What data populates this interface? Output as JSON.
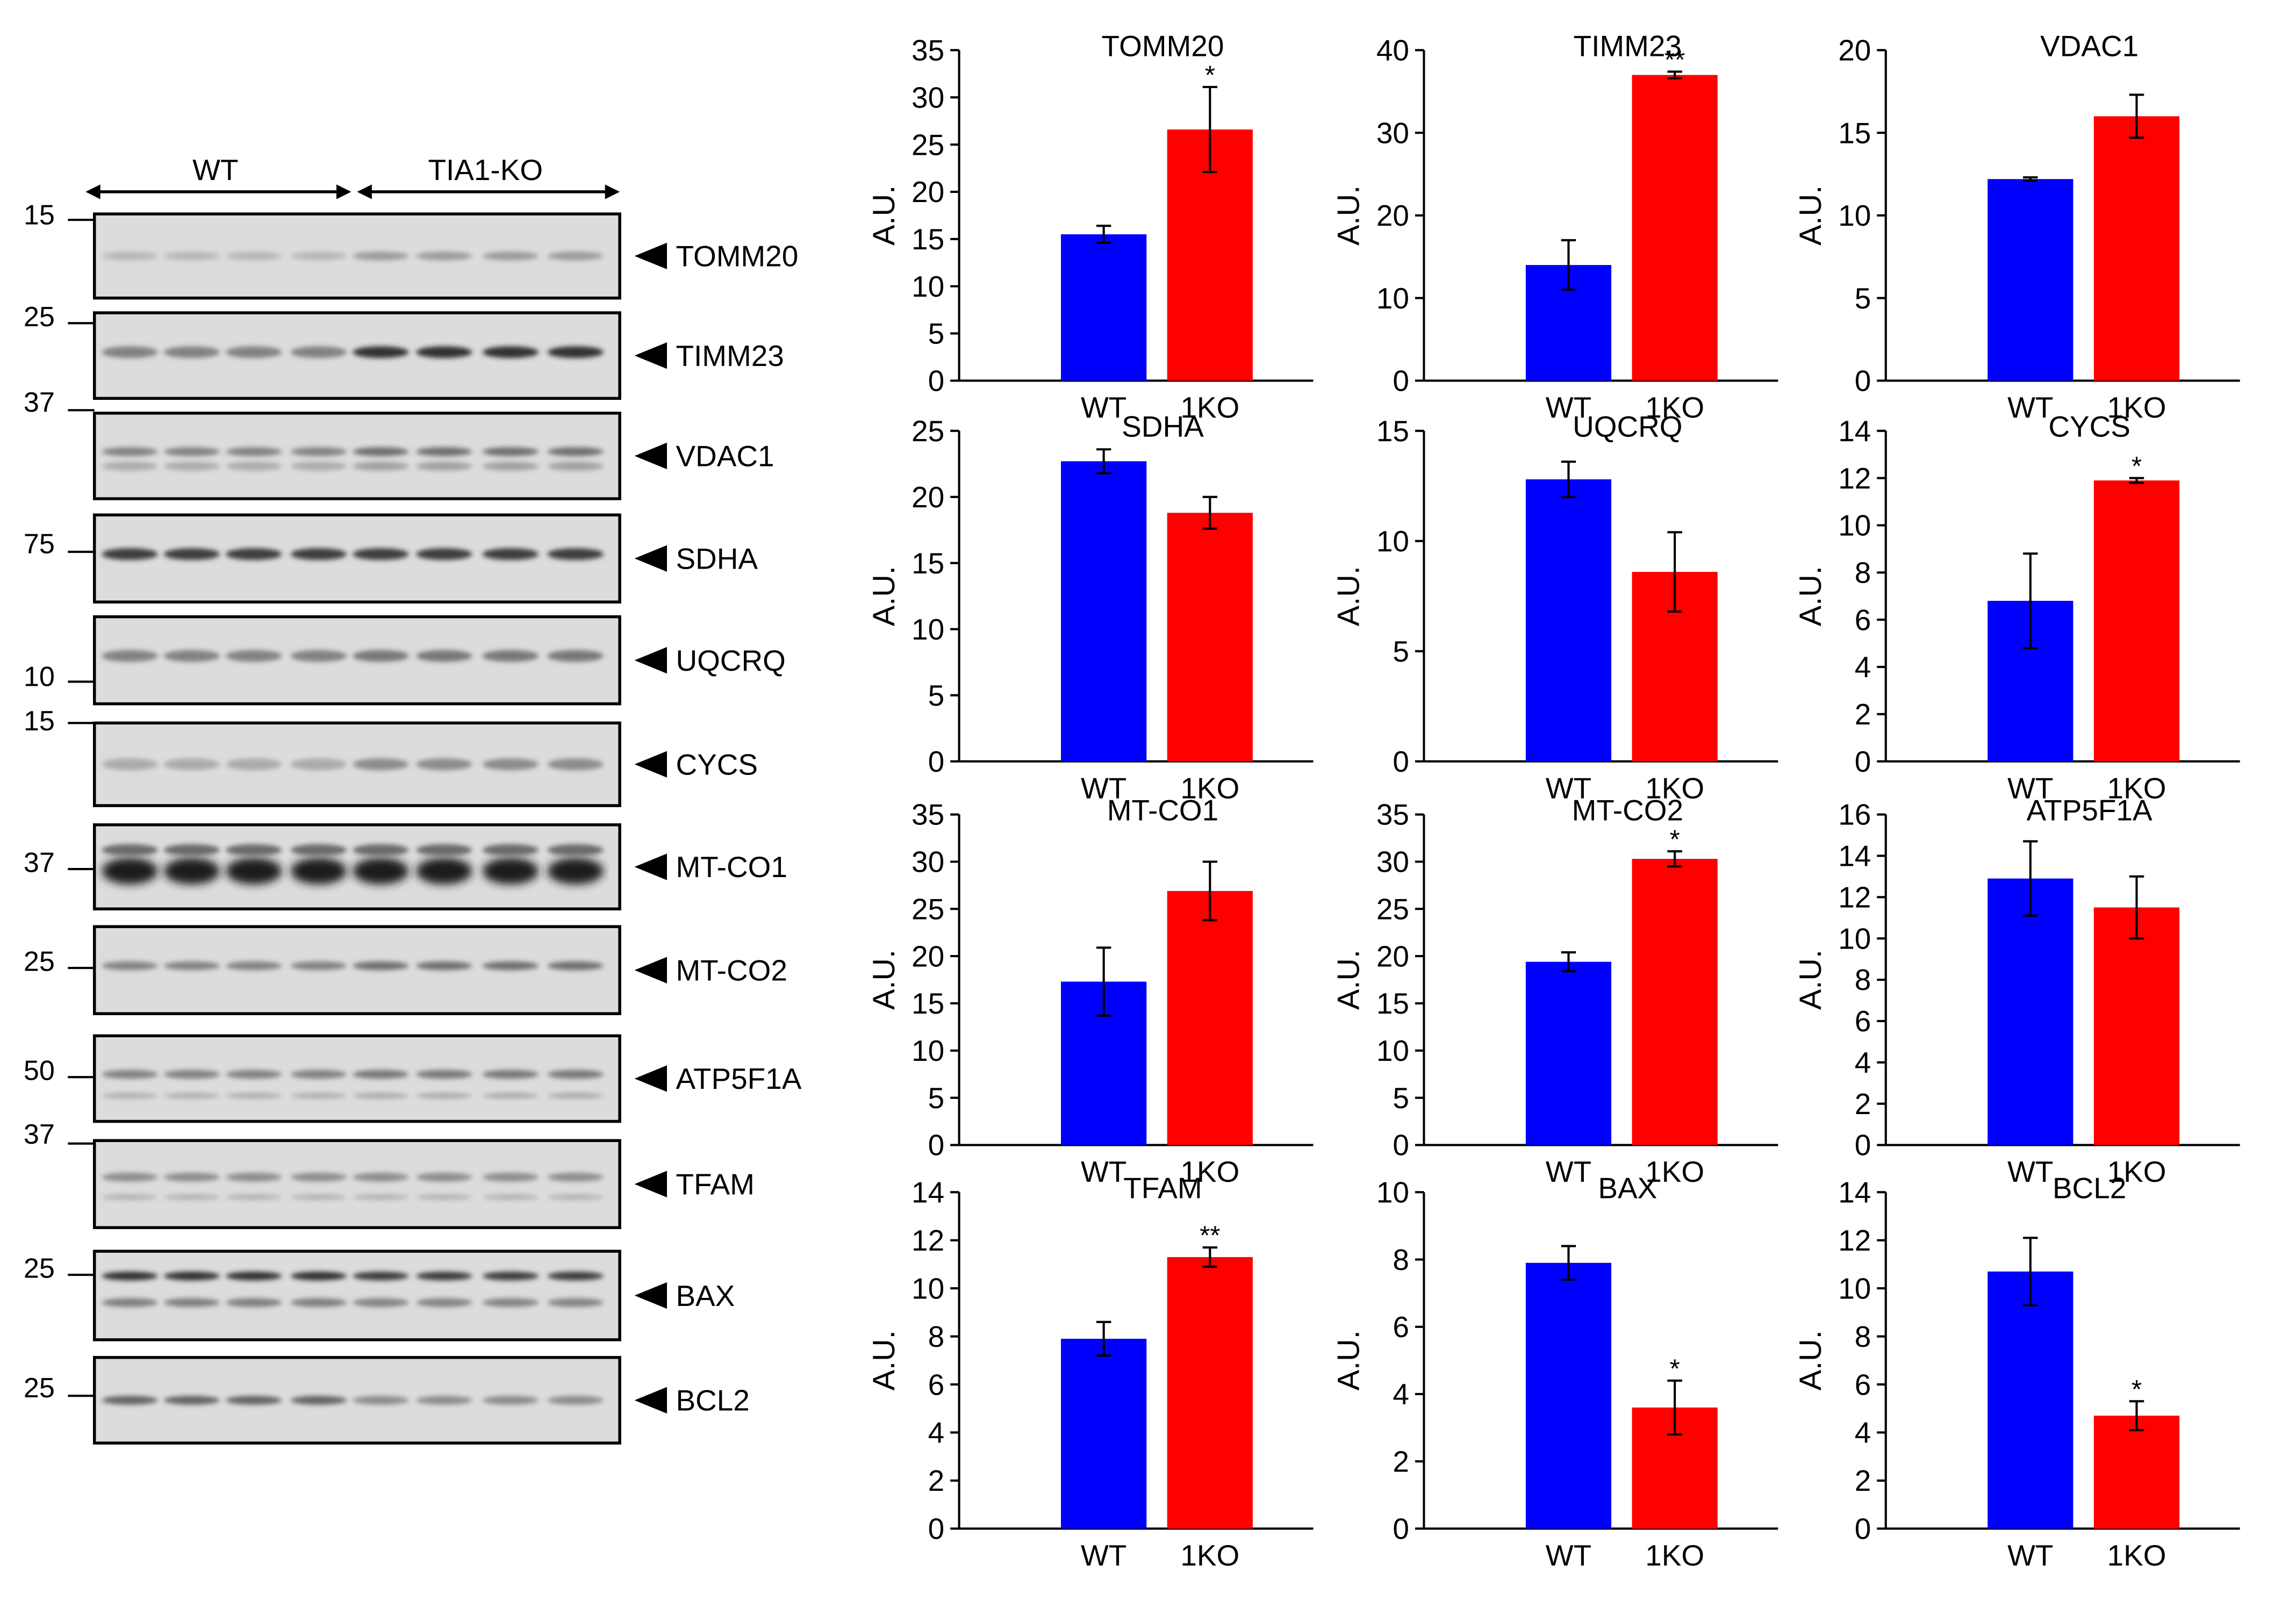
{
  "blot": {
    "groups": [
      "WT",
      "TIA1-KO"
    ],
    "markers": [
      "15",
      "25",
      "37",
      "75",
      "10",
      "15",
      "37",
      "25",
      "50",
      "37",
      "25",
      "25"
    ],
    "proteins": [
      "TOMM20",
      "TIMM23",
      "VDAC1",
      "SDHA",
      "UQCRQ",
      "CYCS",
      "MT-CO1",
      "MT-CO2",
      "ATP5F1A",
      "TFAM",
      "BAX",
      "BCL2"
    ]
  },
  "colors": {
    "wt": "#0000ff",
    "ko": "#ff0000",
    "axis": "#000000"
  },
  "chart_data": [
    {
      "type": "bar",
      "title": "TOMM20",
      "ylabel": "A.U.",
      "categories": [
        "WT",
        "1KO"
      ],
      "values": [
        15.5,
        26.6
      ],
      "errors": [
        0.9,
        4.5
      ],
      "ylim": [
        0,
        35
      ],
      "yticks": [
        0,
        5,
        10,
        15,
        20,
        25,
        30,
        35
      ],
      "significance": [
        "",
        "*"
      ]
    },
    {
      "type": "bar",
      "title": "TIMM23",
      "ylabel": "A.U.",
      "categories": [
        "WT",
        "1KO"
      ],
      "values": [
        14.0,
        37.0
      ],
      "errors": [
        3.0,
        0.4
      ],
      "ylim": [
        0,
        40
      ],
      "yticks": [
        0,
        10,
        20,
        30,
        40
      ],
      "significance": [
        "",
        "**"
      ]
    },
    {
      "type": "bar",
      "title": "VDAC1",
      "ylabel": "A.U.",
      "categories": [
        "WT",
        "1KO"
      ],
      "values": [
        12.2,
        16.0
      ],
      "errors": [
        0.1,
        1.3
      ],
      "ylim": [
        0,
        20
      ],
      "yticks": [
        0,
        5,
        10,
        15,
        20
      ],
      "significance": [
        "",
        ""
      ]
    },
    {
      "type": "bar",
      "title": "SDHA",
      "ylabel": "A.U.",
      "categories": [
        "WT",
        "1KO"
      ],
      "values": [
        22.7,
        18.8
      ],
      "errors": [
        0.9,
        1.2
      ],
      "ylim": [
        0,
        25
      ],
      "yticks": [
        0,
        5,
        10,
        15,
        20,
        25
      ],
      "significance": [
        "",
        ""
      ]
    },
    {
      "type": "bar",
      "title": "UQCRQ",
      "ylabel": "A.U.",
      "categories": [
        "WT",
        "1KO"
      ],
      "values": [
        12.8,
        8.6
      ],
      "errors": [
        0.8,
        1.8
      ],
      "ylim": [
        0,
        15
      ],
      "yticks": [
        0,
        5,
        10,
        15
      ],
      "significance": [
        "",
        ""
      ]
    },
    {
      "type": "bar",
      "title": "CYCS",
      "ylabel": "A.U.",
      "categories": [
        "WT",
        "1KO"
      ],
      "values": [
        6.8,
        11.9
      ],
      "errors": [
        2.0,
        0.1
      ],
      "ylim": [
        0,
        14
      ],
      "yticks": [
        0,
        2,
        4,
        6,
        8,
        10,
        12,
        14
      ],
      "significance": [
        "",
        "*"
      ]
    },
    {
      "type": "bar",
      "title": "MT-CO1",
      "ylabel": "A.U.",
      "categories": [
        "WT",
        "1KO"
      ],
      "values": [
        17.3,
        26.9
      ],
      "errors": [
        3.6,
        3.1
      ],
      "ylim": [
        0,
        35
      ],
      "yticks": [
        0,
        5,
        10,
        15,
        20,
        25,
        30,
        35
      ],
      "significance": [
        "",
        ""
      ]
    },
    {
      "type": "bar",
      "title": "MT-CO2",
      "ylabel": "A.U.",
      "categories": [
        "WT",
        "1KO"
      ],
      "values": [
        19.4,
        30.3
      ],
      "errors": [
        1.0,
        0.8
      ],
      "ylim": [
        0,
        35
      ],
      "yticks": [
        0,
        5,
        10,
        15,
        20,
        25,
        30,
        35
      ],
      "significance": [
        "",
        "*"
      ]
    },
    {
      "type": "bar",
      "title": "ATP5F1A",
      "ylabel": "A.U.",
      "categories": [
        "WT",
        "1KO"
      ],
      "values": [
        12.9,
        11.5
      ],
      "errors": [
        1.8,
        1.5
      ],
      "ylim": [
        0,
        16
      ],
      "yticks": [
        0,
        2,
        4,
        6,
        8,
        10,
        12,
        14,
        16
      ],
      "significance": [
        "",
        ""
      ]
    },
    {
      "type": "bar",
      "title": "TFAM",
      "ylabel": "A.U.",
      "categories": [
        "WT",
        "1KO"
      ],
      "values": [
        7.9,
        11.3
      ],
      "errors": [
        0.7,
        0.4
      ],
      "ylim": [
        0,
        14
      ],
      "yticks": [
        0,
        2,
        4,
        6,
        8,
        10,
        12,
        14
      ],
      "significance": [
        "",
        "**"
      ]
    },
    {
      "type": "bar",
      "title": "BAX",
      "ylabel": "A.U.",
      "categories": [
        "WT",
        "1KO"
      ],
      "values": [
        7.9,
        3.6
      ],
      "errors": [
        0.5,
        0.8
      ],
      "ylim": [
        0,
        10
      ],
      "yticks": [
        0,
        2,
        4,
        6,
        8,
        10
      ],
      "significance": [
        "",
        "*"
      ]
    },
    {
      "type": "bar",
      "title": "BCL2",
      "ylabel": "A.U.",
      "categories": [
        "WT",
        "1KO"
      ],
      "values": [
        10.7,
        4.7
      ],
      "errors": [
        1.4,
        0.6
      ],
      "ylim": [
        0,
        14
      ],
      "yticks": [
        0,
        2,
        4,
        6,
        8,
        10,
        12,
        14
      ],
      "significance": [
        "",
        "*"
      ]
    }
  ]
}
